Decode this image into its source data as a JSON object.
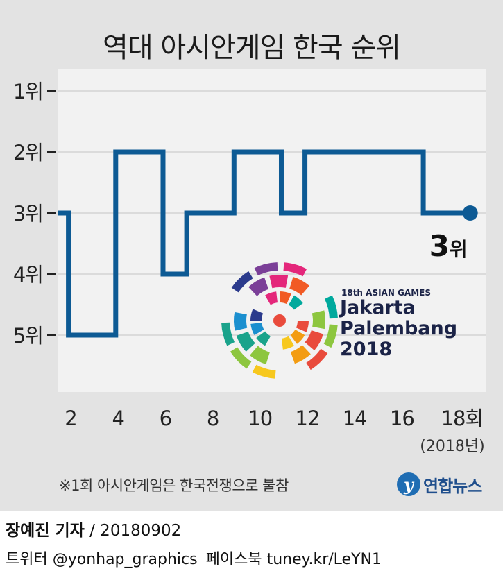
{
  "title": "역대 아시안게임 한국 순위",
  "chart_data": {
    "type": "line",
    "step": true,
    "x": [
      1.9,
      3.9,
      4.9,
      5.9,
      6.9,
      7.9,
      8.9,
      9.9,
      10.9,
      11.9,
      12.9,
      13.9,
      14.9,
      15.9,
      16.9,
      17.9
    ],
    "values": [
      3,
      5,
      2,
      2,
      4,
      3,
      3,
      2,
      2,
      3,
      2,
      2,
      2,
      2,
      2,
      3
    ],
    "xlim": [
      2,
      19
    ],
    "ylim": [
      1,
      5
    ],
    "y_inverted": true,
    "y_tick_labels": [
      "1위",
      "2위",
      "3위",
      "4위",
      "5위"
    ],
    "x_tick_values": [
      2,
      4,
      6,
      8,
      10,
      12,
      14,
      16,
      18
    ],
    "x_tick_labels": [
      "2",
      "4",
      "6",
      "8",
      "10",
      "12",
      "14",
      "16",
      "18회"
    ],
    "x_sub_label": "(2018년)",
    "end_label": {
      "value": "3",
      "unit": "위"
    },
    "grid": true,
    "line_color": "#0d5a94",
    "plot_background": "#f2f2f2"
  },
  "logo": {
    "line1": "18th ASIAN GAMES",
    "line2": "Jakarta",
    "line3": "Palembang",
    "line4": "2018",
    "icon": "asian-games-2018-emblem"
  },
  "note": "※1회 아시안게임은 한국전쟁으로 불참",
  "brand": {
    "icon_char": "y",
    "name": "연합뉴스"
  },
  "credit": {
    "name": "장예진 기자",
    "date": "/ 20180902"
  },
  "social": {
    "twitter": "트위터 @yonhap_graphics",
    "facebook": "페이스북 tuney.kr/LeYN1"
  }
}
